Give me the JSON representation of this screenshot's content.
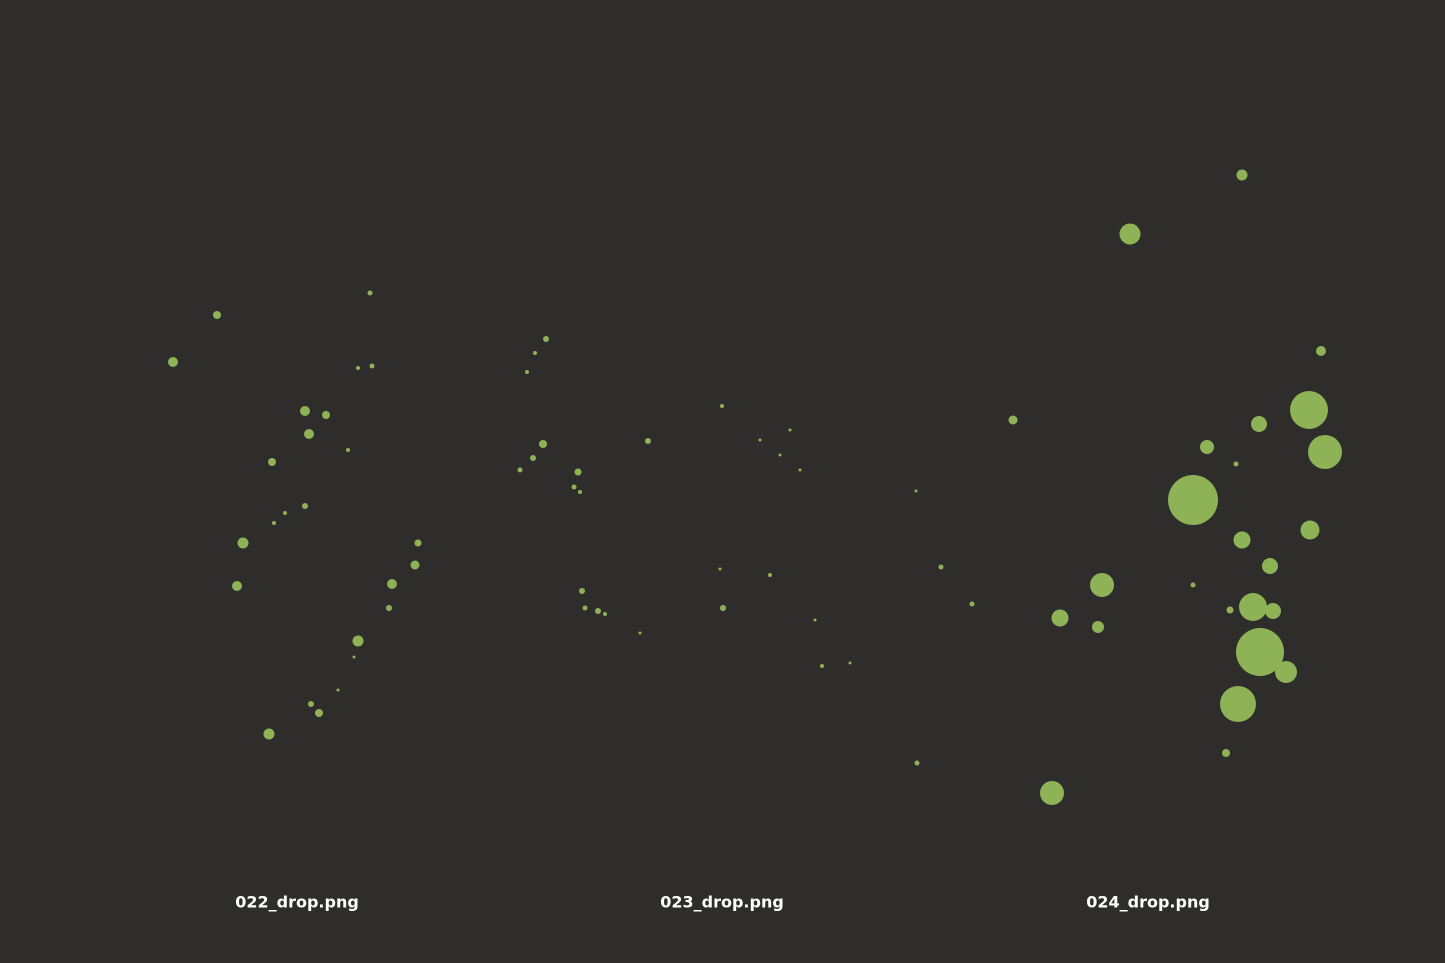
{
  "labels": [
    "022_drop.png",
    "023_drop.png",
    "024_drop.png"
  ]
}
